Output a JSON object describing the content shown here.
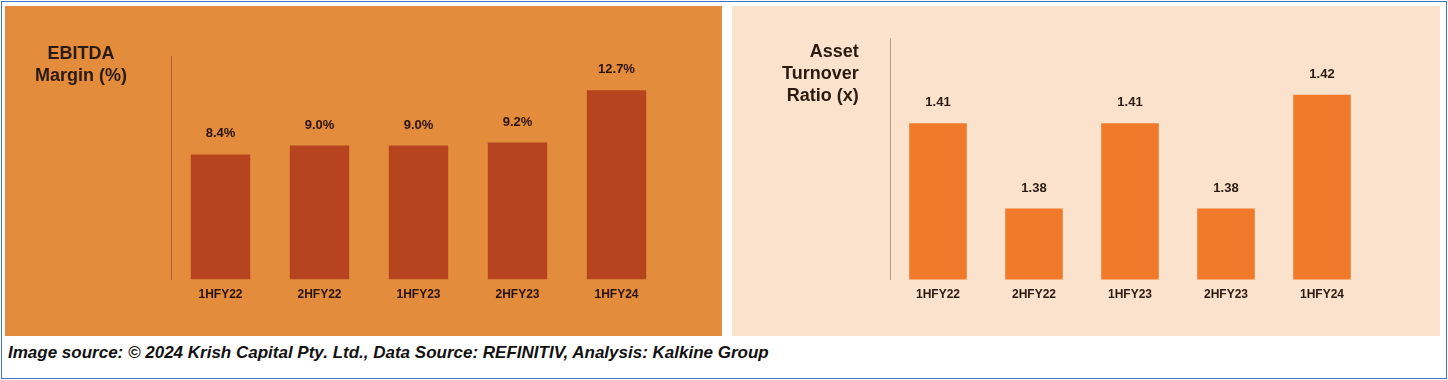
{
  "source": "Image source: © 2024 Krish Capital Pty. Ltd., Data Source: REFINITIV, Analysis: Kalkine Group",
  "chart_data": [
    {
      "type": "bar",
      "title": [
        "EBITDA",
        "Margin (%)"
      ],
      "categories": [
        "1HFY22",
        "2HFY22",
        "1HFY23",
        "2HFY23",
        "1HFY24"
      ],
      "values": [
        8.4,
        9.0,
        9.0,
        9.2,
        12.7
      ],
      "value_labels": [
        "8.4%",
        "9.0%",
        "9.0%",
        "9.2%",
        "12.7%"
      ],
      "color": "#b5441f",
      "ylim": [
        0,
        15
      ],
      "yticks": [],
      "grid": false,
      "data_labels": true,
      "tick_labels": "x"
    },
    {
      "type": "bar",
      "title": [
        "Asset",
        "Turnover",
        "Ratio (x)"
      ],
      "categories": [
        "1HFY22",
        "2HFY22",
        "1HFY23",
        "2HFY23",
        "1HFY24"
      ],
      "values": [
        1.41,
        1.38,
        1.41,
        1.38,
        1.42
      ],
      "color": "#f07a2a",
      "ylim": [
        1.355,
        1.44
      ],
      "yticks": [],
      "grid": false,
      "data_labels": true,
      "tick_labels": "x"
    }
  ]
}
